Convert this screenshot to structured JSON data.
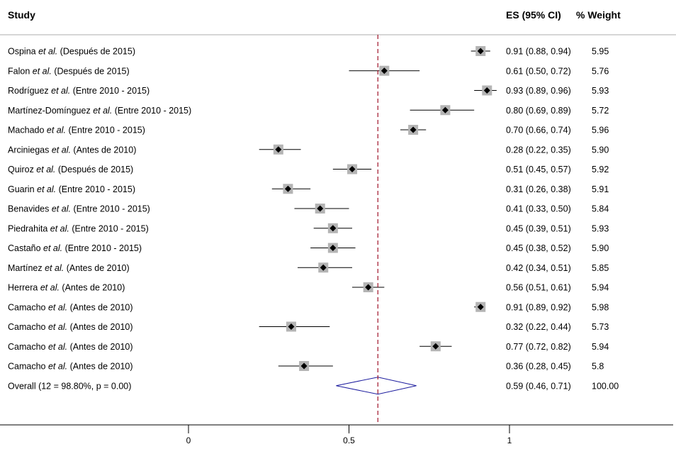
{
  "chart_data": {
    "type": "forest",
    "title": "",
    "headers": {
      "study": "Study",
      "es": "ES (95% CI)",
      "weight": "% Weight"
    },
    "xlim": [
      -0.6,
      1.51
    ],
    "xticks": [
      0,
      0.5,
      1
    ],
    "xtick_labels": [
      "0",
      "0.5",
      "1"
    ],
    "reference_line": 0.59,
    "colors": {
      "ref_line": "#a0142a",
      "diamond": "#1c1c9e",
      "box": "#b4b4b4",
      "point": "#000000",
      "rule": "#c8c8c8"
    },
    "studies": [
      {
        "author": "Ospina",
        "etal": "et al.",
        "period": "(Después de 2015)",
        "es": 0.91,
        "lo": 0.88,
        "hi": 0.94,
        "es_text": "0.91 (0.88, 0.94)",
        "weight": "5.95"
      },
      {
        "author": "Falon",
        "etal": "et al.",
        "period": "(Después de 2015)",
        "es": 0.61,
        "lo": 0.5,
        "hi": 0.72,
        "es_text": "0.61 (0.50, 0.72)",
        "weight": "5.76"
      },
      {
        "author": "Rodríguez",
        "etal": "et al.",
        "period": "(Entre 2010 - 2015)",
        "es": 0.93,
        "lo": 0.89,
        "hi": 0.96,
        "es_text": "0.93 (0.89, 0.96)",
        "weight": "5.93"
      },
      {
        "author": "Martínez-Domínguez",
        "etal": "et al.",
        "period": "(Entre 2010 - 2015)",
        "es": 0.8,
        "lo": 0.69,
        "hi": 0.89,
        "es_text": "0.80 (0.69, 0.89)",
        "weight": "5.72"
      },
      {
        "author": "Machado",
        "etal": "et al.",
        "period": "(Entre 2010 - 2015)",
        "es": 0.7,
        "lo": 0.66,
        "hi": 0.74,
        "es_text": "0.70 (0.66, 0.74)",
        "weight": "5.96"
      },
      {
        "author": "Arciniegas",
        "etal": "et al.",
        "period": "(Antes de 2010)",
        "es": 0.28,
        "lo": 0.22,
        "hi": 0.35,
        "es_text": "0.28 (0.22, 0.35)",
        "weight": "5.90"
      },
      {
        "author": "Quiroz",
        "etal": "et al.",
        "period": "(Después de 2015)",
        "es": 0.51,
        "lo": 0.45,
        "hi": 0.57,
        "es_text": "0.51 (0.45, 0.57)",
        "weight": "5.92"
      },
      {
        "author": "Guarin",
        "etal": "et al.",
        "period": "(Entre 2010 - 2015)",
        "es": 0.31,
        "lo": 0.26,
        "hi": 0.38,
        "es_text": "0.31 (0.26, 0.38)",
        "weight": "5.91"
      },
      {
        "author": "Benavides",
        "etal": "et al.",
        "period": "(Entre 2010 - 2015)",
        "es": 0.41,
        "lo": 0.33,
        "hi": 0.5,
        "es_text": "0.41 (0.33, 0.50)",
        "weight": "5.84"
      },
      {
        "author": "Piedrahita",
        "etal": "et al.",
        "period": "(Entre 2010 - 2015)",
        "es": 0.45,
        "lo": 0.39,
        "hi": 0.51,
        "es_text": "0.45 (0.39, 0.51)",
        "weight": "5.93"
      },
      {
        "author": "Castaño",
        "etal": "et al.",
        "period": "(Entre 2010 - 2015)",
        "es": 0.45,
        "lo": 0.38,
        "hi": 0.52,
        "es_text": "0.45 (0.38, 0.52)",
        "weight": "5.90"
      },
      {
        "author": "Martínez",
        "etal": "et al.",
        "period": "(Antes de 2010)",
        "es": 0.42,
        "lo": 0.34,
        "hi": 0.51,
        "es_text": "0.42 (0.34, 0.51)",
        "weight": "5.85"
      },
      {
        "author": "Herrera",
        "etal": "et al.",
        "period": "(Antes de 2010)",
        "es": 0.56,
        "lo": 0.51,
        "hi": 0.61,
        "es_text": "0.56 (0.51, 0.61)",
        "weight": "5.94"
      },
      {
        "author": "Camacho",
        "etal": "et al.",
        "period": "(Antes de 2010)",
        "es": 0.91,
        "lo": 0.89,
        "hi": 0.92,
        "es_text": "0.91 (0.89, 0.92)",
        "weight": "5.98"
      },
      {
        "author": "Camacho",
        "etal": "et al.",
        "period": "(Antes de 2010)",
        "es": 0.32,
        "lo": 0.22,
        "hi": 0.44,
        "es_text": "0.32 (0.22, 0.44)",
        "weight": "5.73"
      },
      {
        "author": "Camacho",
        "etal": "et al.",
        "period": "(Antes de 2010)",
        "es": 0.77,
        "lo": 0.72,
        "hi": 0.82,
        "es_text": "0.77 (0.72, 0.82)",
        "weight": "5.94"
      },
      {
        "author": "Camacho",
        "etal": "et al.",
        "period": "(Antes de 2010)",
        "es": 0.36,
        "lo": 0.28,
        "hi": 0.45,
        "es_text": "0.36 (0.28, 0.45)",
        "weight": "5.8"
      }
    ],
    "overall": {
      "label": "Overall (12 = 98.80%, p = 0.00)",
      "es": 0.59,
      "lo": 0.46,
      "hi": 0.71,
      "es_text": "0.59 (0.46, 0.71)",
      "weight": "100.00"
    }
  }
}
